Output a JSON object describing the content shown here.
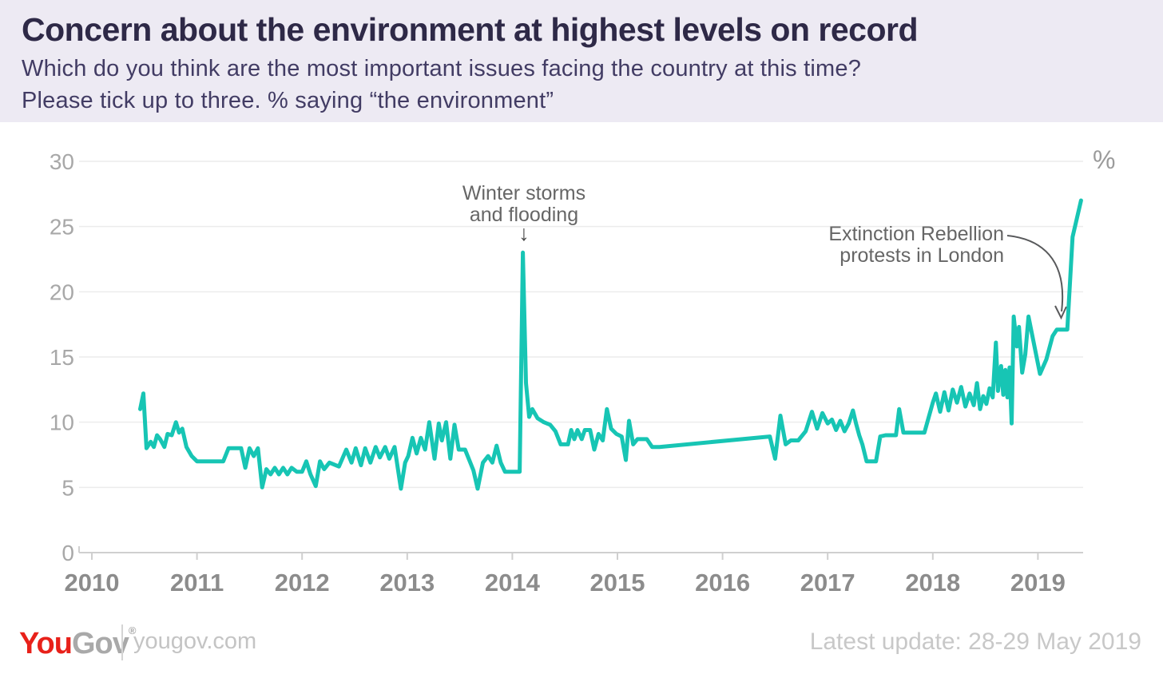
{
  "header": {
    "title": "Concern about the environment at highest levels on record",
    "subtitle_line1": "Which do you think are the most important issues facing the country at this time?",
    "subtitle_line2": "Please tick up to three. % saying “the environment”"
  },
  "annotations": {
    "winter_storms": {
      "line1": "Winter storms",
      "line2": "and flooding",
      "arrow": "↓"
    },
    "extinction_rebellion": {
      "line1": "Extinction Rebellion",
      "line2": "protests in London"
    }
  },
  "footer": {
    "logo_you": "You",
    "logo_gov": "Gov",
    "trademark": "®",
    "website": "yougov.com",
    "latest_update": "Latest update: 28-29 May 2019"
  },
  "colors": {
    "line": "#17c5b4",
    "header_bg": "#edeaf3",
    "title_text": "#2e2947",
    "axis_text": "#8c8c8c",
    "logo_red": "#e8211a"
  },
  "chart_data": {
    "type": "line",
    "title": "Concern about the environment at highest levels on record",
    "subtitle": "Which do you think are the most important issues facing the country at this time? Please tick up to three. % saying “the environment”",
    "unit_label": "%",
    "xlabel": "",
    "ylabel": "%",
    "x_ticks": [
      2010,
      2011,
      2012,
      2013,
      2014,
      2015,
      2016,
      2017,
      2018,
      2019
    ],
    "y_ticks": [
      0,
      5,
      10,
      15,
      20,
      25,
      30
    ],
    "ylim": [
      0,
      30
    ],
    "xlim": [
      2009.88,
      2019.43
    ],
    "grid": "horizontal",
    "legend": "none",
    "annotations": [
      {
        "text": "Winter storms and flooding",
        "x": 2014.1,
        "y": 23
      },
      {
        "text": "Extinction Rebellion protests in London",
        "x": 2019.28,
        "y": 17.1
      }
    ],
    "series": [
      {
        "name": "% saying the environment",
        "color": "#17c5b4",
        "points": [
          [
            2010.46,
            11.0
          ],
          [
            2010.49,
            12.2
          ],
          [
            2010.52,
            8.0
          ],
          [
            2010.56,
            8.5
          ],
          [
            2010.59,
            8.1
          ],
          [
            2010.62,
            9.0
          ],
          [
            2010.65,
            8.7
          ],
          [
            2010.69,
            8.1
          ],
          [
            2010.72,
            9.1
          ],
          [
            2010.76,
            9.0
          ],
          [
            2010.8,
            10.0
          ],
          [
            2010.83,
            9.2
          ],
          [
            2010.86,
            9.5
          ],
          [
            2010.9,
            8.1
          ],
          [
            2010.95,
            7.4
          ],
          [
            2011.0,
            7.0
          ],
          [
            2011.25,
            7.0
          ],
          [
            2011.3,
            8.0
          ],
          [
            2011.42,
            8.0
          ],
          [
            2011.46,
            6.5
          ],
          [
            2011.5,
            8.0
          ],
          [
            2011.54,
            7.4
          ],
          [
            2011.58,
            8.0
          ],
          [
            2011.62,
            5.0
          ],
          [
            2011.66,
            6.4
          ],
          [
            2011.7,
            6.0
          ],
          [
            2011.74,
            6.5
          ],
          [
            2011.78,
            6.0
          ],
          [
            2011.82,
            6.5
          ],
          [
            2011.86,
            6.0
          ],
          [
            2011.9,
            6.5
          ],
          [
            2011.95,
            6.2
          ],
          [
            2012.0,
            6.2
          ],
          [
            2012.04,
            7.0
          ],
          [
            2012.08,
            6.0
          ],
          [
            2012.13,
            5.1
          ],
          [
            2012.17,
            7.0
          ],
          [
            2012.21,
            6.4
          ],
          [
            2012.26,
            6.9
          ],
          [
            2012.35,
            6.6
          ],
          [
            2012.42,
            7.9
          ],
          [
            2012.47,
            6.9
          ],
          [
            2012.51,
            8.0
          ],
          [
            2012.56,
            6.7
          ],
          [
            2012.6,
            8.0
          ],
          [
            2012.65,
            6.9
          ],
          [
            2012.7,
            8.1
          ],
          [
            2012.74,
            7.3
          ],
          [
            2012.79,
            8.1
          ],
          [
            2012.83,
            7.2
          ],
          [
            2012.88,
            8.1
          ],
          [
            2012.94,
            4.9
          ],
          [
            2012.98,
            6.9
          ],
          [
            2013.01,
            7.4
          ],
          [
            2013.05,
            8.8
          ],
          [
            2013.09,
            7.6
          ],
          [
            2013.13,
            8.8
          ],
          [
            2013.17,
            7.9
          ],
          [
            2013.21,
            10.0
          ],
          [
            2013.26,
            7.2
          ],
          [
            2013.3,
            9.9
          ],
          [
            2013.33,
            8.6
          ],
          [
            2013.37,
            10.0
          ],
          [
            2013.41,
            7.2
          ],
          [
            2013.45,
            9.8
          ],
          [
            2013.49,
            7.9
          ],
          [
            2013.55,
            7.9
          ],
          [
            2013.6,
            6.9
          ],
          [
            2013.63,
            6.3
          ],
          [
            2013.67,
            4.9
          ],
          [
            2013.72,
            6.9
          ],
          [
            2013.77,
            7.4
          ],
          [
            2013.81,
            6.9
          ],
          [
            2013.85,
            8.2
          ],
          [
            2013.89,
            6.9
          ],
          [
            2013.93,
            6.2
          ],
          [
            2014.07,
            6.2
          ],
          [
            2014.1,
            23.0
          ],
          [
            2014.13,
            13.0
          ],
          [
            2014.16,
            10.4
          ],
          [
            2014.19,
            11.0
          ],
          [
            2014.24,
            10.3
          ],
          [
            2014.3,
            10.0
          ],
          [
            2014.36,
            9.8
          ],
          [
            2014.41,
            9.3
          ],
          [
            2014.46,
            8.3
          ],
          [
            2014.53,
            8.3
          ],
          [
            2014.56,
            9.4
          ],
          [
            2014.59,
            8.7
          ],
          [
            2014.62,
            9.4
          ],
          [
            2014.66,
            8.7
          ],
          [
            2014.69,
            9.4
          ],
          [
            2014.74,
            9.4
          ],
          [
            2014.78,
            7.9
          ],
          [
            2014.82,
            9.1
          ],
          [
            2014.86,
            8.6
          ],
          [
            2014.9,
            11.0
          ],
          [
            2014.94,
            9.5
          ],
          [
            2014.99,
            9.1
          ],
          [
            2015.04,
            8.9
          ],
          [
            2015.08,
            7.1
          ],
          [
            2015.11,
            10.1
          ],
          [
            2015.15,
            8.3
          ],
          [
            2015.19,
            8.7
          ],
          [
            2015.28,
            8.7
          ],
          [
            2015.33,
            8.1
          ],
          [
            2015.4,
            8.1
          ],
          [
            2016.45,
            8.9
          ],
          [
            2016.5,
            7.2
          ],
          [
            2016.55,
            10.5
          ],
          [
            2016.6,
            8.3
          ],
          [
            2016.65,
            8.6
          ],
          [
            2016.72,
            8.6
          ],
          [
            2016.79,
            9.3
          ],
          [
            2016.85,
            10.8
          ],
          [
            2016.9,
            9.5
          ],
          [
            2016.95,
            10.7
          ],
          [
            2017.0,
            9.9
          ],
          [
            2017.04,
            10.2
          ],
          [
            2017.08,
            9.4
          ],
          [
            2017.12,
            10.1
          ],
          [
            2017.16,
            9.3
          ],
          [
            2017.2,
            9.9
          ],
          [
            2017.24,
            10.9
          ],
          [
            2017.27,
            9.9
          ],
          [
            2017.3,
            9.0
          ],
          [
            2017.33,
            8.3
          ],
          [
            2017.37,
            7.0
          ],
          [
            2017.46,
            7.0
          ],
          [
            2017.5,
            8.9
          ],
          [
            2017.55,
            9.0
          ],
          [
            2017.65,
            9.0
          ],
          [
            2017.68,
            11.0
          ],
          [
            2017.72,
            9.2
          ],
          [
            2017.92,
            9.2
          ],
          [
            2018.0,
            11.5
          ],
          [
            2018.03,
            12.2
          ],
          [
            2018.07,
            10.8
          ],
          [
            2018.11,
            12.3
          ],
          [
            2018.15,
            10.9
          ],
          [
            2018.19,
            12.5
          ],
          [
            2018.23,
            11.5
          ],
          [
            2018.27,
            12.7
          ],
          [
            2018.31,
            11.2
          ],
          [
            2018.35,
            12.2
          ],
          [
            2018.39,
            11.3
          ],
          [
            2018.42,
            13.0
          ],
          [
            2018.45,
            11.0
          ],
          [
            2018.48,
            12.0
          ],
          [
            2018.51,
            11.4
          ],
          [
            2018.54,
            12.6
          ],
          [
            2018.57,
            11.9
          ],
          [
            2018.6,
            16.1
          ],
          [
            2018.62,
            12.4
          ],
          [
            2018.65,
            14.3
          ],
          [
            2018.67,
            12.1
          ],
          [
            2018.69,
            14.0
          ],
          [
            2018.71,
            11.9
          ],
          [
            2018.73,
            14.2
          ],
          [
            2018.75,
            9.9
          ],
          [
            2018.77,
            18.1
          ],
          [
            2018.8,
            15.8
          ],
          [
            2018.82,
            17.3
          ],
          [
            2018.85,
            13.8
          ],
          [
            2018.88,
            15.2
          ],
          [
            2018.91,
            18.1
          ],
          [
            2019.02,
            13.7
          ],
          [
            2019.08,
            14.8
          ],
          [
            2019.14,
            16.6
          ],
          [
            2019.18,
            17.1
          ],
          [
            2019.28,
            17.1
          ],
          [
            2019.33,
            24.2
          ],
          [
            2019.41,
            27.0
          ]
        ]
      }
    ]
  }
}
